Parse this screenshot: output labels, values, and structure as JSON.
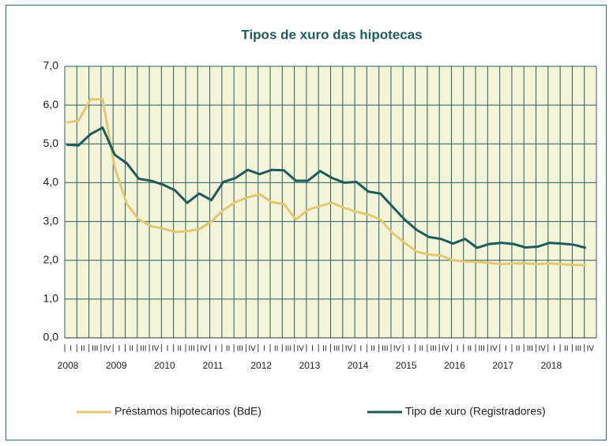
{
  "chart_data": {
    "type": "line",
    "title": "Tipos de xuro das hipotecas",
    "categories": [
      "I",
      "II",
      "III",
      "IV",
      "I",
      "II",
      "III",
      "IV",
      "I",
      "II",
      "III",
      "IV",
      "I",
      "II",
      "III",
      "IV",
      "I",
      "II",
      "III",
      "IV",
      "I",
      "II",
      "III",
      "IV",
      "I",
      "II",
      "III",
      "IV",
      "I",
      "II",
      "III",
      "IV",
      "I",
      "II",
      "III",
      "IV",
      "I",
      "II",
      "III",
      "IV",
      "I",
      "II",
      "III",
      "IV"
    ],
    "years": [
      "2008",
      "2009",
      "2010",
      "2011",
      "2012",
      "2013",
      "2014",
      "2015",
      "2016",
      "2017",
      "2018"
    ],
    "series": [
      {
        "name": "Préstamos hipotecarios (BdE)",
        "color": "#e3c870",
        "values": [
          5.55,
          5.6,
          6.15,
          6.15,
          4.4,
          3.45,
          3.05,
          2.88,
          2.82,
          2.73,
          2.75,
          2.8,
          3.0,
          3.3,
          3.5,
          3.62,
          3.7,
          3.5,
          3.45,
          3.05,
          3.3,
          3.4,
          3.48,
          3.35,
          3.25,
          3.18,
          3.05,
          2.7,
          2.45,
          2.22,
          2.15,
          2.12,
          2.0,
          1.97,
          1.96,
          1.93,
          1.9,
          1.92,
          1.92,
          1.9,
          1.92,
          1.9,
          1.88,
          1.88
        ]
      },
      {
        "name": "Tipo de xuro (Registradores)",
        "color": "#1e5b5b",
        "values": [
          4.98,
          4.96,
          5.25,
          5.42,
          4.72,
          4.5,
          4.1,
          4.05,
          3.95,
          3.8,
          3.48,
          3.72,
          3.55,
          4.02,
          4.12,
          4.33,
          4.22,
          4.33,
          4.32,
          4.05,
          4.05,
          4.3,
          4.12,
          4.0,
          4.02,
          3.77,
          3.72,
          3.38,
          3.05,
          2.78,
          2.6,
          2.55,
          2.43,
          2.55,
          2.32,
          2.42,
          2.45,
          2.42,
          2.33,
          2.35,
          2.45,
          2.43,
          2.4,
          2.32
        ]
      }
    ],
    "ylim": [
      0,
      7
    ],
    "yticks": [
      {
        "value": 0,
        "label": "0,0"
      },
      {
        "value": 1,
        "label": "1,0"
      },
      {
        "value": 2,
        "label": "2,0"
      },
      {
        "value": 3,
        "label": "3,0"
      },
      {
        "value": 4,
        "label": "4,0"
      },
      {
        "value": 5,
        "label": "5,0"
      },
      {
        "value": 6,
        "label": "6,0"
      },
      {
        "value": 7,
        "label": "7,0"
      }
    ],
    "grid": true
  }
}
